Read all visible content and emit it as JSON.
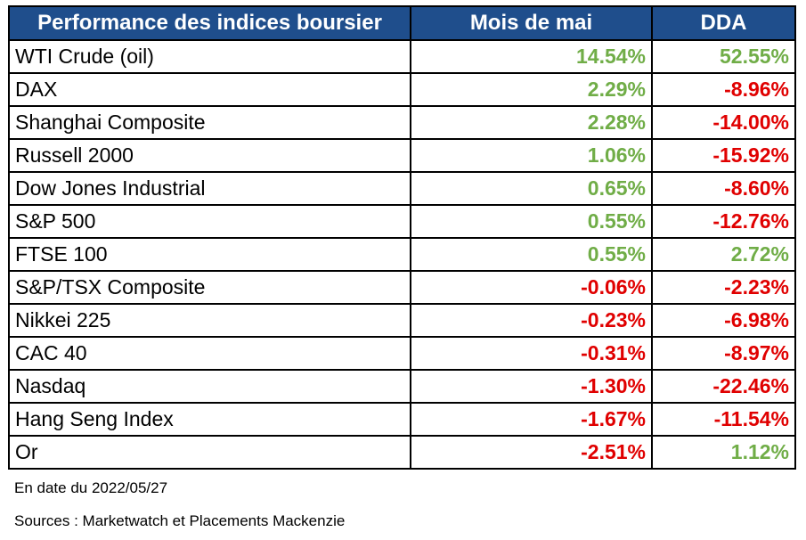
{
  "chart_data": {
    "type": "table",
    "columns": [
      "Performance des indices boursier",
      "Mois de mai",
      "DDA"
    ],
    "rows": [
      {
        "name": "WTI Crude (oil)",
        "mois": "14.54%",
        "mois_value": 14.54,
        "dda": "52.55%",
        "dda_value": 52.55
      },
      {
        "name": "DAX",
        "mois": "2.29%",
        "mois_value": 2.29,
        "dda": "-8.96%",
        "dda_value": -8.96
      },
      {
        "name": "Shanghai Composite",
        "mois": "2.28%",
        "mois_value": 2.28,
        "dda": "-14.00%",
        "dda_value": -14.0
      },
      {
        "name": "Russell 2000",
        "mois": "1.06%",
        "mois_value": 1.06,
        "dda": "-15.92%",
        "dda_value": -15.92
      },
      {
        "name": "Dow Jones Industrial",
        "mois": "0.65%",
        "mois_value": 0.65,
        "dda": "-8.60%",
        "dda_value": -8.6
      },
      {
        "name": "S&P 500",
        "mois": "0.55%",
        "mois_value": 0.55,
        "dda": "-12.76%",
        "dda_value": -12.76
      },
      {
        "name": "FTSE 100",
        "mois": "0.55%",
        "mois_value": 0.55,
        "dda": "2.72%",
        "dda_value": 2.72
      },
      {
        "name": "S&P/TSX Composite",
        "mois": "-0.06%",
        "mois_value": -0.06,
        "dda": "-2.23%",
        "dda_value": -2.23
      },
      {
        "name": "Nikkei 225",
        "mois": "-0.23%",
        "mois_value": -0.23,
        "dda": "-6.98%",
        "dda_value": -6.98
      },
      {
        "name": "CAC 40",
        "mois": "-0.31%",
        "mois_value": -0.31,
        "dda": "-8.97%",
        "dda_value": -8.97
      },
      {
        "name": "Nasdaq",
        "mois": "-1.30%",
        "mois_value": -1.3,
        "dda": "-22.46%",
        "dda_value": -22.46
      },
      {
        "name": "Hang Seng Index",
        "mois": "-1.67%",
        "mois_value": -1.67,
        "dda": "-11.54%",
        "dda_value": -11.54
      },
      {
        "name": "Or",
        "mois": "-2.51%",
        "mois_value": -2.51,
        "dda": "1.12%",
        "dda_value": 1.12
      }
    ]
  },
  "footnotes": {
    "date": "En date du 2022/05/27",
    "sources": "Sources : Marketwatch et Placements Mackenzie"
  },
  "colors": {
    "header_bg": "#1f4e8c",
    "header_text": "#ffffff",
    "positive": "#70ad47",
    "negative": "#e00000",
    "border": "#000000"
  }
}
